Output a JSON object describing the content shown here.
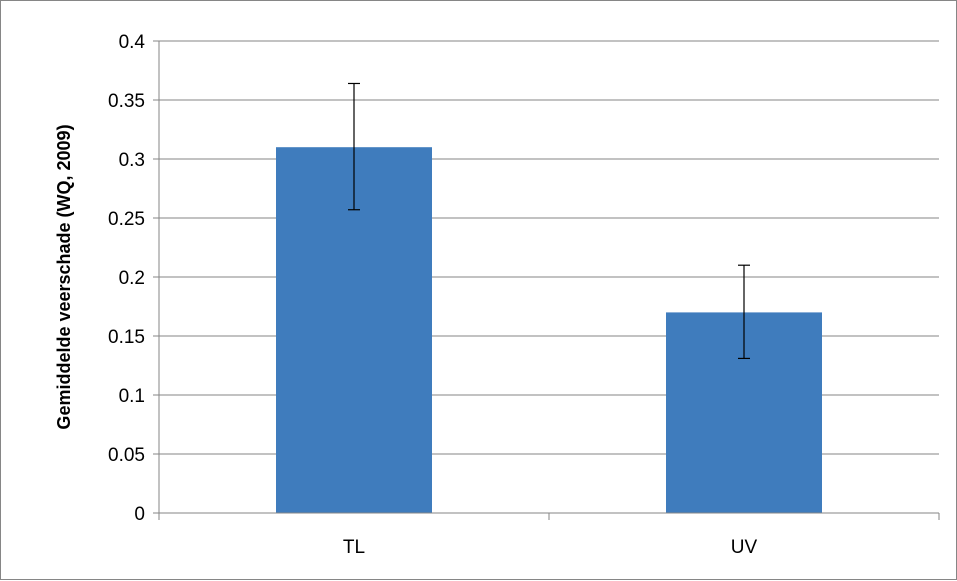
{
  "chart_data": {
    "type": "bar",
    "title": "",
    "xlabel": "",
    "ylabel": "Gemiddelde veerschade (WQ, 2009)",
    "categories": [
      "TL",
      "UV"
    ],
    "series": [
      {
        "values": [
          0.31,
          0.17
        ],
        "error_low": [
          0.257,
          0.131
        ],
        "error_high": [
          0.364,
          0.21
        ],
        "color": "#3F7CBD"
      }
    ],
    "ylim": [
      0,
      0.4
    ],
    "yticks": [
      "0",
      "0.05",
      "0.1",
      "0.15",
      "0.2",
      "0.25",
      "0.3",
      "0.35",
      "0.4"
    ],
    "grid": true,
    "legend": "none",
    "gridline_color": "#868686",
    "axis_color": "#868686"
  }
}
